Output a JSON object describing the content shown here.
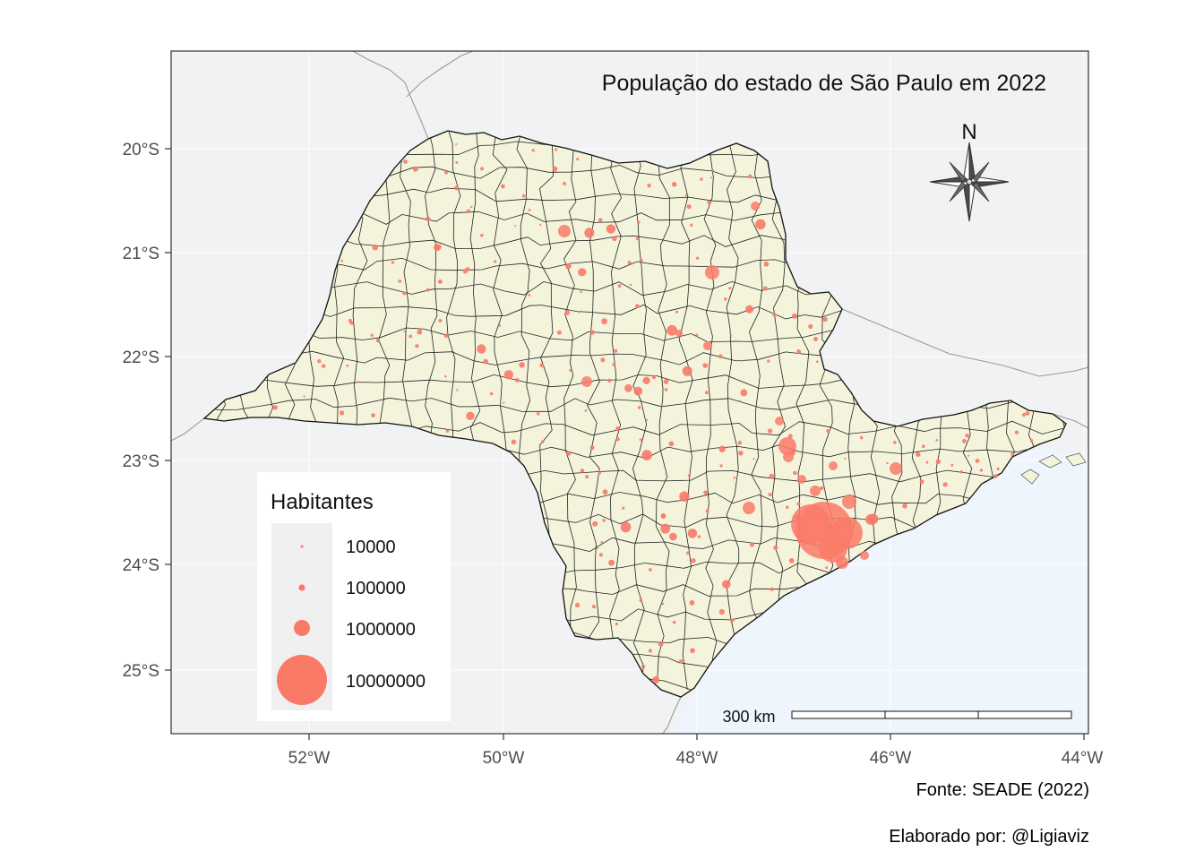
{
  "map": {
    "title": "População do estado de São Paulo em 2022",
    "x_ticks": [
      "52°W",
      "50°W",
      "48°W",
      "46°W",
      "44°W"
    ],
    "y_ticks": [
      "20°S",
      "21°S",
      "22°S",
      "23°S",
      "24°S",
      "25°S"
    ],
    "north_label": "N",
    "scale_bar_label": "300 km",
    "colors": {
      "panel_background": "#f1f2f4",
      "ocean": "#eef5fd",
      "state_fill": "#f4f4dd",
      "border": "#111111",
      "bubble": "#fa7a68"
    }
  },
  "legend": {
    "title": "Habitantes",
    "entries": [
      "10000",
      "100000",
      "1000000",
      "10000000"
    ]
  },
  "captions": {
    "source": "Fonte: SEADE (2022)",
    "author": "Elaborado por: @Ligiaviz"
  }
}
